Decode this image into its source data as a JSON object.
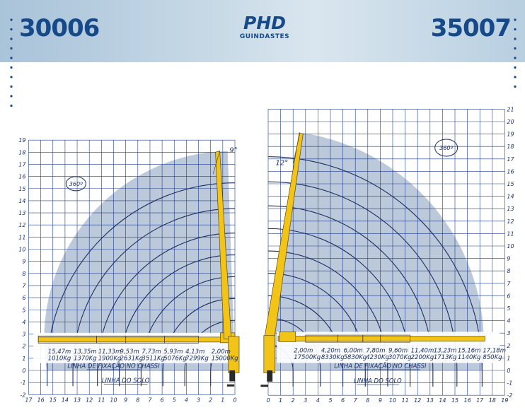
{
  "header": {
    "model_left": "30006",
    "model_right": "35007",
    "logo_main": "PHD",
    "logo_sub": "GUINDASTES"
  },
  "colors": {
    "grid": "#1f3f8f",
    "area_fill": "#b5c3d6",
    "area_dark": "#8ea3c0",
    "arc": "#1a2f66",
    "boom": "#f2c418",
    "boom_outline": "#5a4a10",
    "text": "#1a2f66",
    "header_text": "#15498a"
  },
  "left_chart": {
    "y_ticks": [
      "19",
      "18",
      "17",
      "16",
      "15",
      "14",
      "13",
      "12",
      "11",
      "10",
      "9",
      "8",
      "7",
      "6",
      "5",
      "4",
      "3",
      "2",
      "1",
      "0",
      "-1",
      "-2"
    ],
    "x_ticks": [
      "17",
      "16",
      "15",
      "14",
      "13",
      "12",
      "11",
      "10",
      "9",
      "8",
      "7",
      "6",
      "5",
      "4",
      "3",
      "2",
      "1",
      "0"
    ],
    "rotation_label": "360º",
    "angle_label": "9°",
    "chassis_label": "LINHA DE FIXAÇÃO NO CHASSI",
    "ground_label": "LINHA DO SOLO",
    "capacities": [
      {
        "reach": "15,47m",
        "load": "1010Kg"
      },
      {
        "reach": "13,35m",
        "load": "1370Kg"
      },
      {
        "reach": "11,33m",
        "load": "1900Kg"
      },
      {
        "reach": "9,53m",
        "load": "2631Kg"
      },
      {
        "reach": "7,73m",
        "load": "3511Kg"
      },
      {
        "reach": "5,93m",
        "load": "5076Kg"
      },
      {
        "reach": "4,13m",
        "load": "7299Kg"
      },
      {
        "reach": "2,00m",
        "load": "15000Kg"
      }
    ]
  },
  "right_chart": {
    "y_ticks": [
      "21",
      "20",
      "19",
      "18",
      "17",
      "16",
      "15",
      "14",
      "13",
      "12",
      "11",
      "10",
      "9",
      "8",
      "7",
      "6",
      "5",
      "4",
      "3",
      "2",
      "1",
      "0",
      "-1",
      "-2"
    ],
    "x_ticks": [
      "0",
      "1",
      "2",
      "3",
      "4",
      "5",
      "6",
      "7",
      "8",
      "9",
      "10",
      "11",
      "12",
      "13",
      "14",
      "15",
      "16",
      "17",
      "18",
      "19"
    ],
    "rotation_label": "360º",
    "angle_label": "12°",
    "chassis_label": "LINHA DE FIXAÇÃO NO CHASSI",
    "ground_label": "LINHA DO SOLO",
    "capacities": [
      {
        "reach": "2,00m",
        "load": "17500Kg"
      },
      {
        "reach": "4,20m",
        "load": "8330Kg"
      },
      {
        "reach": "6,00m",
        "load": "5830Kg"
      },
      {
        "reach": "7,80m",
        "load": "4230Kg"
      },
      {
        "reach": "9,60m",
        "load": "3070Kg"
      },
      {
        "reach": "11,40m",
        "load": "2200Kg"
      },
      {
        "reach": "13,23m",
        "load": "1713Kg"
      },
      {
        "reach": "15,16m",
        "load": "1140Kg"
      },
      {
        "reach": "17,18m",
        "load": "850Kg"
      }
    ]
  }
}
